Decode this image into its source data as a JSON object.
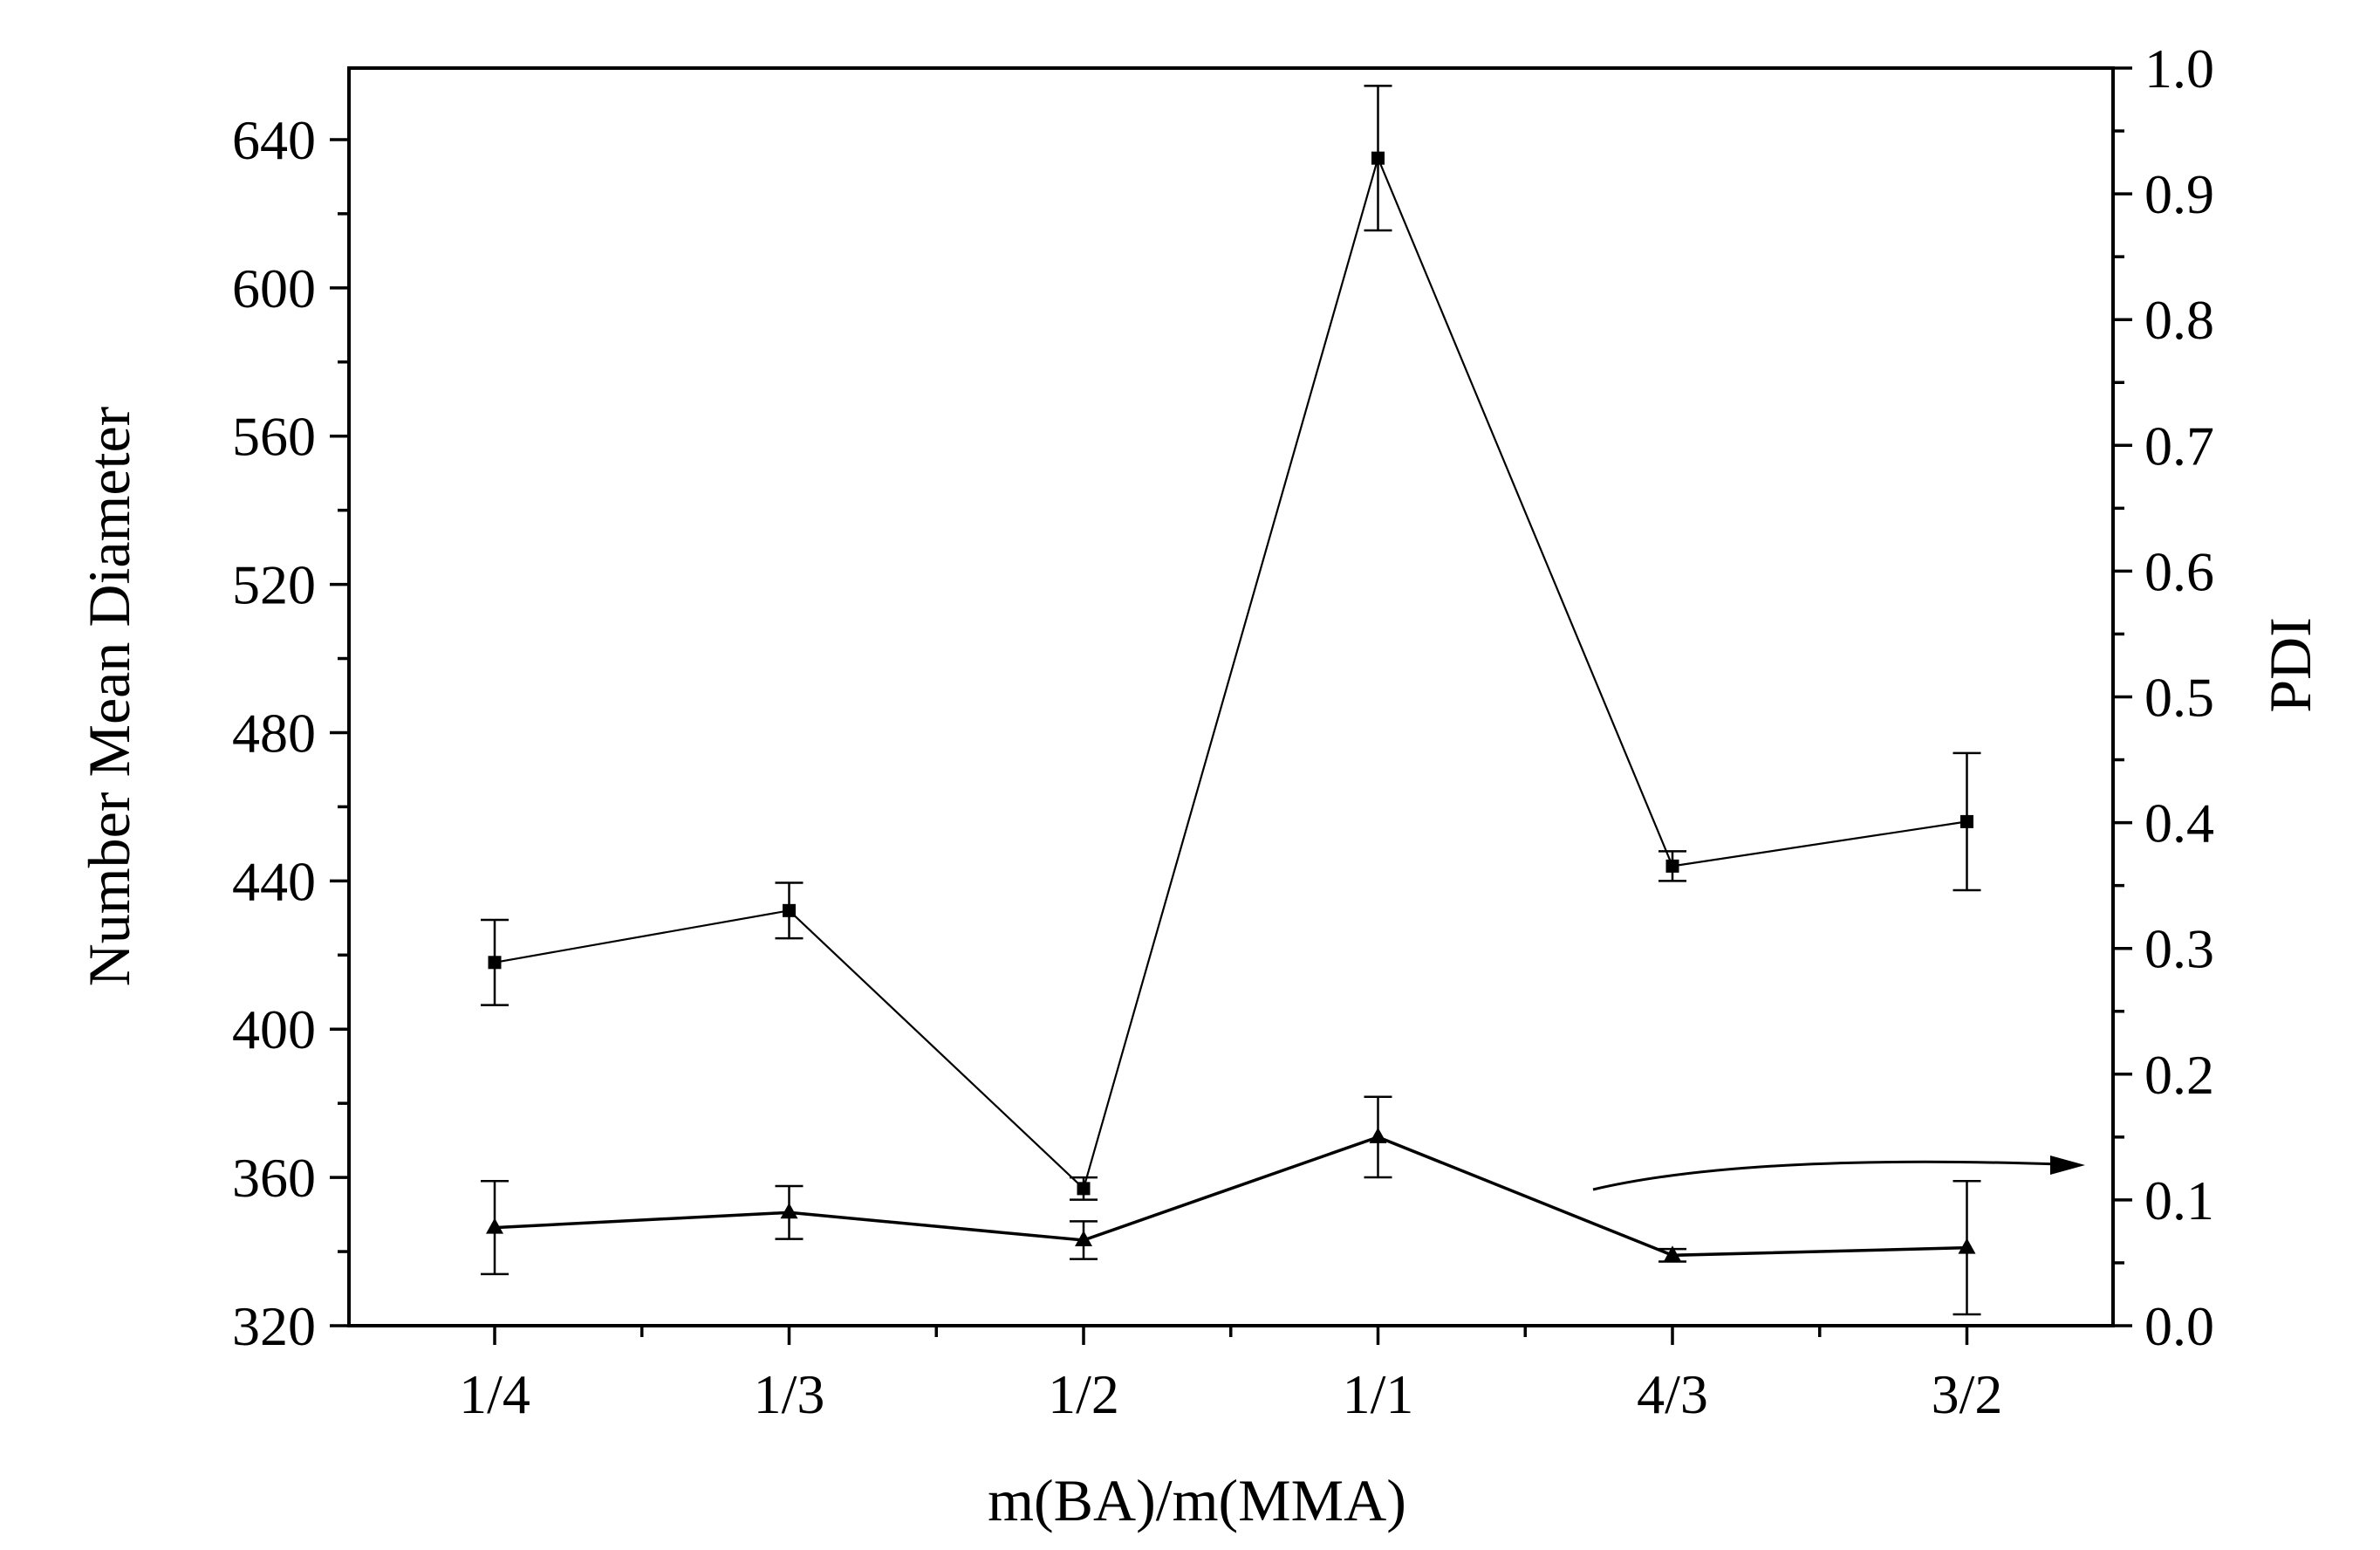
{
  "chart_data": {
    "type": "line",
    "xlabel": "m(BA)/m(MMA)",
    "ylabel": "Number Mean Diameter",
    "y2label": "PDI",
    "categories": [
      "1/4",
      "1/3",
      "1/2",
      "1/1",
      "4/3",
      "3/2"
    ],
    "ylim": [
      320,
      660
    ],
    "y2lim": [
      0.0,
      1.0
    ],
    "yticks": [
      "320",
      "360",
      "400",
      "440",
      "480",
      "520",
      "560",
      "600",
      "640"
    ],
    "y2ticks": [
      "0.0",
      "0.1",
      "0.2",
      "0.3",
      "0.4",
      "0.5",
      "0.6",
      "0.7",
      "0.8",
      "0.9",
      "1.0"
    ],
    "grid": false,
    "series": [
      {
        "axis": "left",
        "marker": "square",
        "values": [
          418,
          432,
          357,
          635,
          444,
          456
        ],
        "errors": [
          11.5,
          7.5,
          3,
          19.5,
          4,
          18.5
        ]
      },
      {
        "axis": "right",
        "marker": "triangle",
        "values": [
          0.078,
          0.09,
          0.068,
          0.15,
          0.056,
          0.062
        ],
        "errors": [
          0.037,
          0.021,
          0.015,
          0.032,
          0.005,
          0.053
        ]
      }
    ],
    "annotation": "arrow pointing to right axis"
  }
}
